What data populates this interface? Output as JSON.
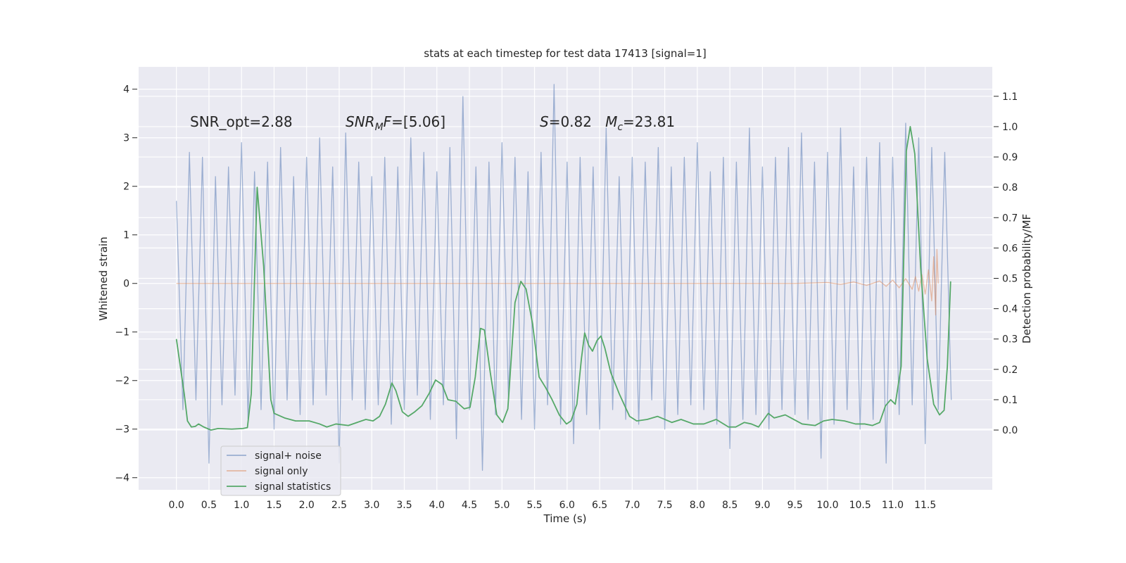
{
  "chart_data": {
    "type": "line",
    "title": "stats at each timestep for test data 17413 [signal=1]",
    "x_label": "Time (s)",
    "y_label": "Whitened strain",
    "y2_label": "Detection probability/MF",
    "xlim": [
      -0.58,
      12.53
    ],
    "ylim": [
      -4.25,
      4.46
    ],
    "y2lim": [
      -0.197,
      1.197
    ],
    "xticks": [
      {
        "value": 0,
        "label": "0.0"
      },
      0.5,
      {
        "value": 1,
        "label": "1.0"
      },
      1.5,
      {
        "value": 2,
        "label": "2.0"
      },
      2.5,
      {
        "value": 3,
        "label": "3.0"
      },
      3.5,
      {
        "value": 4,
        "label": "4.0"
      },
      4.5,
      {
        "value": 5,
        "label": "5.0"
      },
      5.5,
      {
        "value": 6,
        "label": "6.0"
      },
      6.5,
      {
        "value": 7,
        "label": "7.0"
      },
      7.5,
      {
        "value": 8,
        "label": "8.0"
      },
      8.5,
      {
        "value": 9,
        "label": "9.0"
      },
      9.5,
      {
        "value": 10,
        "label": "10.0"
      },
      10.5,
      {
        "value": 11,
        "label": "11.0"
      },
      11.5
    ],
    "yticks": [
      {
        "value": -4,
        "label": "−4"
      },
      {
        "value": -3,
        "label": "−3"
      },
      {
        "value": -2,
        "label": "−2"
      },
      {
        "value": -1,
        "label": "−1"
      },
      0,
      1,
      2,
      3,
      4
    ],
    "y2ticks": [
      {
        "value": 0,
        "label": "0.0"
      },
      0.1,
      0.2,
      0.3,
      0.4,
      0.5,
      0.6,
      0.7,
      0.8,
      0.9,
      {
        "value": 1,
        "label": "1.0"
      },
      1.1
    ],
    "grid": true,
    "legend": "lower left",
    "annotations": [
      {
        "segments": [
          {
            "text": "SNR_opt=2.88"
          }
        ]
      },
      {
        "segments": [
          {
            "text": "SNR",
            "italic": true
          },
          {
            "text": "M",
            "italic": true,
            "sub": true
          },
          {
            "text": "F",
            "italic": true
          },
          {
            "text": "=[5.06]"
          }
        ]
      },
      {
        "segments": [
          {
            "text": "S",
            "italic": true
          },
          {
            "text": "=0.82   "
          },
          {
            "text": "M",
            "italic": true
          },
          {
            "text": "c",
            "italic": true,
            "sub": true
          },
          {
            "text": "=23.81"
          }
        ]
      }
    ],
    "series": [
      {
        "name": "signal+ noise",
        "color": "#4c72b0",
        "opacity": 0.5,
        "x": [
          0.0,
          0.1,
          0.2,
          0.3,
          0.4,
          0.5,
          0.6,
          0.7,
          0.8,
          0.9,
          1.0,
          1.1,
          1.2,
          1.3,
          1.4,
          1.5,
          1.6,
          1.7,
          1.8,
          1.9,
          2.0,
          2.1,
          2.2,
          2.3,
          2.4,
          2.5,
          2.6,
          2.7,
          2.8,
          2.9,
          3.0,
          3.1,
          3.2,
          3.3,
          3.4,
          3.5,
          3.6,
          3.7,
          3.8,
          3.9,
          4.0,
          4.1,
          4.2,
          4.3,
          4.4,
          4.5,
          4.6,
          4.7,
          4.8,
          4.9,
          5.0,
          5.1,
          5.2,
          5.3,
          5.4,
          5.5,
          5.6,
          5.7,
          5.8,
          5.9,
          6.0,
          6.1,
          6.2,
          6.3,
          6.4,
          6.5,
          6.6,
          6.7,
          6.8,
          6.9,
          7.0,
          7.1,
          7.2,
          7.3,
          7.4,
          7.5,
          7.6,
          7.7,
          7.8,
          7.9,
          8.0,
          8.1,
          8.2,
          8.3,
          8.4,
          8.5,
          8.6,
          8.7,
          8.8,
          8.9,
          9.0,
          9.1,
          9.2,
          9.3,
          9.4,
          9.5,
          9.6,
          9.7,
          9.8,
          9.9,
          10.0,
          10.1,
          10.2,
          10.3,
          10.4,
          10.5,
          10.6,
          10.7,
          10.8,
          10.9,
          11.0,
          11.1,
          11.2,
          11.3,
          11.4,
          11.5,
          11.6,
          11.7,
          11.8,
          11.9
        ],
        "values": [
          1.7,
          -2.6,
          2.7,
          -2.4,
          2.6,
          -3.7,
          2.2,
          -2.5,
          2.4,
          -2.3,
          2.9,
          -2.8,
          2.3,
          -2.6,
          2.5,
          -3.0,
          2.8,
          -2.4,
          2.2,
          -2.7,
          2.6,
          -2.5,
          3.0,
          -2.3,
          2.4,
          -3.7,
          3.1,
          -2.4,
          2.5,
          -2.6,
          2.2,
          -2.5,
          2.6,
          -2.9,
          2.4,
          -2.6,
          3.0,
          -2.3,
          2.7,
          -2.8,
          2.3,
          -2.5,
          2.8,
          -3.2,
          3.85,
          -2.6,
          2.4,
          -3.85,
          2.5,
          -2.7,
          2.9,
          -2.4,
          2.6,
          -2.8,
          2.3,
          -3.0,
          2.7,
          -2.5,
          4.1,
          -2.9,
          2.5,
          -3.3,
          2.6,
          -2.7,
          2.4,
          -3.0,
          3.2,
          -2.6,
          2.2,
          -2.8,
          2.6,
          -2.9,
          2.5,
          -2.4,
          2.8,
          -3.0,
          2.4,
          -2.7,
          2.6,
          -2.5,
          2.9,
          -2.6,
          2.3,
          -2.9,
          2.6,
          -3.4,
          2.5,
          -2.8,
          3.2,
          -2.7,
          2.4,
          -3.0,
          2.6,
          -2.6,
          2.8,
          -2.7,
          3.1,
          -2.8,
          2.5,
          -3.6,
          2.7,
          -2.9,
          3.2,
          -2.6,
          2.4,
          -3.0,
          2.6,
          -2.8,
          2.9,
          -3.7,
          2.6,
          -2.7,
          3.3,
          -2.5,
          3.0,
          -3.3,
          2.8,
          -2.6,
          2.7,
          -2.4
        ]
      },
      {
        "name": "signal only",
        "color": "#dd8452",
        "opacity": 0.5,
        "x": [
          0,
          9.5,
          10.0,
          10.2,
          10.4,
          10.6,
          10.8,
          10.9,
          11.0,
          11.1,
          11.2,
          11.3,
          11.35,
          11.4,
          11.45,
          11.5,
          11.55,
          11.6,
          11.63,
          11.66,
          11.68,
          11.7
        ],
        "values": [
          0,
          0,
          0.02,
          -0.02,
          0.03,
          -0.04,
          0.05,
          -0.06,
          0.07,
          -0.09,
          0.1,
          -0.12,
          0.14,
          -0.16,
          0.18,
          -0.22,
          0.28,
          -0.36,
          0.55,
          -0.65,
          0.7,
          0
        ]
      },
      {
        "name": "signal statistics",
        "color": "#55a868",
        "opacity": 1,
        "axis": "y2",
        "x": [
          0,
          0.12,
          0.17,
          0.23,
          0.29,
          0.34,
          0.42,
          0.53,
          0.64,
          0.85,
          1.02,
          1.09,
          1.15,
          1.24,
          1.34,
          1.45,
          1.5,
          1.66,
          1.83,
          2.04,
          2.2,
          2.31,
          2.45,
          2.64,
          2.91,
          3.02,
          3.12,
          3.21,
          3.31,
          3.37,
          3.47,
          3.56,
          3.66,
          3.77,
          3.88,
          3.98,
          4.08,
          4.17,
          4.29,
          4.42,
          4.51,
          4.59,
          4.67,
          4.73,
          4.82,
          4.92,
          5.01,
          5.09,
          5.2,
          5.29,
          5.37,
          5.47,
          5.57,
          5.67,
          5.77,
          5.88,
          5.99,
          6.06,
          6.15,
          6.22,
          6.27,
          6.33,
          6.39,
          6.46,
          6.52,
          6.58,
          6.67,
          6.8,
          6.96,
          7.07,
          7.23,
          7.39,
          7.5,
          7.61,
          7.75,
          7.94,
          8.1,
          8.29,
          8.48,
          8.59,
          8.72,
          8.83,
          8.94,
          9.09,
          9.18,
          9.27,
          9.35,
          9.48,
          9.61,
          9.81,
          9.94,
          10.07,
          10.26,
          10.43,
          10.57,
          10.69,
          10.8,
          10.89,
          10.97,
          11.04,
          11.13,
          11.21,
          11.27,
          11.34,
          11.43,
          11.53,
          11.63,
          11.72,
          11.79,
          11.84,
          11.89
        ],
        "values": [
          0.3,
          0.12,
          0.03,
          0.01,
          0.012,
          0.02,
          0.01,
          0.0,
          0.005,
          0.003,
          0.005,
          0.008,
          0.12,
          0.8,
          0.54,
          0.1,
          0.055,
          0.04,
          0.03,
          0.03,
          0.02,
          0.01,
          0.02,
          0.015,
          0.035,
          0.03,
          0.045,
          0.085,
          0.155,
          0.13,
          0.06,
          0.045,
          0.06,
          0.08,
          0.12,
          0.165,
          0.15,
          0.1,
          0.095,
          0.07,
          0.075,
          0.175,
          0.335,
          0.33,
          0.19,
          0.05,
          0.025,
          0.07,
          0.42,
          0.49,
          0.465,
          0.35,
          0.175,
          0.14,
          0.1,
          0.05,
          0.02,
          0.03,
          0.085,
          0.235,
          0.32,
          0.28,
          0.26,
          0.295,
          0.31,
          0.27,
          0.19,
          0.12,
          0.045,
          0.03,
          0.035,
          0.045,
          0.035,
          0.025,
          0.035,
          0.02,
          0.02,
          0.035,
          0.01,
          0.01,
          0.025,
          0.02,
          0.01,
          0.055,
          0.04,
          0.045,
          0.05,
          0.035,
          0.02,
          0.015,
          0.03,
          0.035,
          0.03,
          0.02,
          0.02,
          0.015,
          0.025,
          0.08,
          0.1,
          0.085,
          0.21,
          0.92,
          1.0,
          0.91,
          0.535,
          0.235,
          0.085,
          0.05,
          0.065,
          0.21,
          0.49
        ]
      }
    ]
  }
}
